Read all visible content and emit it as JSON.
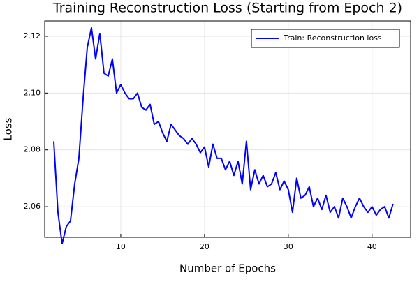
{
  "chart_data": {
    "type": "line",
    "title": "Training Reconstruction Loss (Starting from Epoch 2)",
    "x_label": "Number of Epochs",
    "y_label": "Loss",
    "x": [
      2,
      2.5,
      3,
      3.5,
      4,
      4.5,
      5,
      5.5,
      6,
      6.5,
      7,
      7.5,
      8,
      8.5,
      9,
      9.5,
      10,
      10.5,
      11,
      11.5,
      12,
      12.5,
      13,
      13.5,
      14,
      14.5,
      15,
      15.5,
      16,
      16.5,
      17,
      17.5,
      18,
      18.5,
      19,
      19.5,
      20,
      20.5,
      21,
      21.5,
      22,
      22.5,
      23,
      23.5,
      24,
      24.5,
      25,
      25.5,
      26,
      26.5,
      27,
      27.5,
      28,
      28.5,
      29,
      29.5,
      30,
      30.5,
      31,
      31.5,
      32,
      32.5,
      33,
      33.5,
      34,
      34.5,
      35,
      35.5,
      36,
      36.5,
      37,
      37.5,
      38,
      38.5,
      39,
      39.5,
      40,
      40.5,
      41,
      41.5,
      42,
      42.5
    ],
    "series": [
      {
        "name": "Train: Reconstruction loss",
        "color": "#0000ff",
        "values": [
          2.083,
          2.058,
          2.047,
          2.053,
          2.055,
          2.068,
          2.077,
          2.098,
          2.116,
          2.123,
          2.112,
          2.121,
          2.107,
          2.106,
          2.112,
          2.1,
          2.103,
          2.1,
          2.098,
          2.098,
          2.1,
          2.095,
          2.094,
          2.096,
          2.089,
          2.09,
          2.086,
          2.083,
          2.089,
          2.087,
          2.085,
          2.084,
          2.082,
          2.084,
          2.082,
          2.079,
          2.081,
          2.074,
          2.082,
          2.077,
          2.077,
          2.073,
          2.076,
          2.071,
          2.076,
          2.068,
          2.083,
          2.066,
          2.073,
          2.068,
          2.071,
          2.067,
          2.068,
          2.072,
          2.066,
          2.069,
          2.066,
          2.058,
          2.07,
          2.063,
          2.064,
          2.067,
          2.06,
          2.063,
          2.059,
          2.064,
          2.058,
          2.06,
          2.056,
          2.063,
          2.06,
          2.056,
          2.06,
          2.063,
          2.06,
          2.058,
          2.06,
          2.057,
          2.059,
          2.06,
          2.056,
          2.061
        ]
      }
    ],
    "xlim": [
      0.92,
      44.6
    ],
    "ylim": [
      2.0492,
      2.1254
    ],
    "xticks": [
      10,
      20,
      30,
      40
    ],
    "yticks": [
      2.06,
      2.08,
      {
        "value": 2.1,
        "label": "2.10"
      },
      2.12
    ],
    "grid": true,
    "legend": "top-right"
  }
}
